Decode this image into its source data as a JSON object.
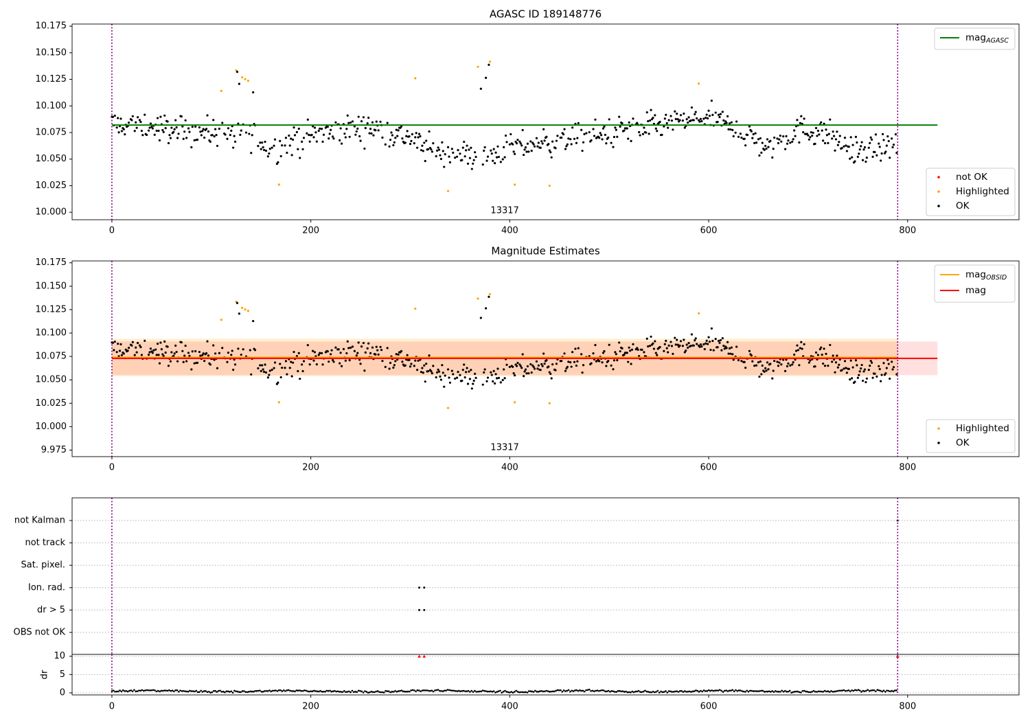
{
  "chart_data": [
    {
      "type": "scatter",
      "title": "AGASC ID 189148776",
      "xlim": [
        -40,
        912
      ],
      "ylim": [
        9.993,
        10.177
      ],
      "xticks": [
        0,
        200,
        400,
        600,
        800
      ],
      "yticks": [
        10.0,
        10.025,
        10.05,
        10.075,
        10.1,
        10.125,
        10.15,
        10.175
      ],
      "ytick_labels": [
        "10.000",
        "10.025",
        "10.050",
        "10.075",
        "10.100",
        "10.125",
        "10.150",
        "10.175"
      ],
      "obsid_label": "13317",
      "obsid_boundaries": [
        0,
        790
      ],
      "lines": [
        {
          "name": "mag",
          "subscript": "AGASC",
          "y": 10.082,
          "x_range": [
            0,
            830
          ],
          "color": "#008000"
        }
      ],
      "legend_lines": {
        "position": "upper-right"
      },
      "legend_points": {
        "position": "lower-right",
        "entries": [
          {
            "label": "not OK",
            "color": "#ff0000"
          },
          {
            "label": "Highlighted",
            "color": "#ffa500"
          },
          {
            "label": "OK",
            "color": "#000000"
          }
        ]
      }
    },
    {
      "type": "scatter",
      "title": "Magnitude Estimates",
      "xlim": [
        -40,
        912
      ],
      "ylim": [
        9.968,
        10.177
      ],
      "xticks": [
        0,
        200,
        400,
        600,
        800
      ],
      "yticks": [
        9.975,
        10.0,
        10.025,
        10.05,
        10.075,
        10.1,
        10.125,
        10.15,
        10.175
      ],
      "ytick_labels": [
        "9.975",
        "10.000",
        "10.025",
        "10.050",
        "10.075",
        "10.100",
        "10.125",
        "10.150",
        "10.175"
      ],
      "obsid_label": "13317",
      "obsid_boundaries": [
        0,
        790
      ],
      "lines": [
        {
          "name": "mag",
          "subscript": "OBSID",
          "y": 10.074,
          "x_range": [
            0,
            790
          ],
          "color": "#ffa500",
          "band": [
            10.054,
            10.094
          ],
          "band_color": "#ffa500"
        },
        {
          "name": "mag",
          "subscript": "",
          "y": 10.073,
          "x_range": [
            0,
            830
          ],
          "color": "#ff0000",
          "band": [
            10.055,
            10.091
          ],
          "band_color": "#ff0000"
        }
      ],
      "legend_lines": {
        "position": "upper-right"
      },
      "legend_points": {
        "position": "lower-right",
        "entries": [
          {
            "label": "Highlighted",
            "color": "#ffa500"
          },
          {
            "label": "OK",
            "color": "#000000"
          }
        ]
      }
    },
    {
      "type": "scatter",
      "title": "",
      "categories": [
        "OBS not OK",
        "dr > 5",
        "Ion. rad.",
        "Sat. pixel.",
        "not track",
        "not Kalman"
      ],
      "xlim": [
        -40,
        912
      ],
      "xticks": [
        0,
        200,
        400,
        600,
        800
      ],
      "obsid_boundaries": [
        0,
        790
      ],
      "flag_points": [
        {
          "category": "Ion. rad.",
          "x": [
            309,
            314
          ]
        },
        {
          "category": "dr > 5",
          "x": [
            309,
            314
          ]
        },
        {
          "category": "not Kalman",
          "x": [
            790
          ]
        }
      ]
    },
    {
      "type": "line",
      "title": "",
      "ylabel": "dr",
      "xlim": [
        -40,
        912
      ],
      "ylim": [
        0,
        10.5
      ],
      "yticks": [
        0,
        5,
        10
      ],
      "xticks": [
        0,
        200,
        400,
        600,
        800
      ],
      "obsid_boundaries": [
        0,
        790
      ],
      "outliers": [
        {
          "x": 309,
          "y": 10,
          "color": "#ff0000"
        },
        {
          "x": 314,
          "y": 10,
          "color": "#ff0000"
        },
        {
          "x": 790,
          "y": 10,
          "color": "#ff0000"
        }
      ],
      "baseline_level": 0.45
    }
  ]
}
